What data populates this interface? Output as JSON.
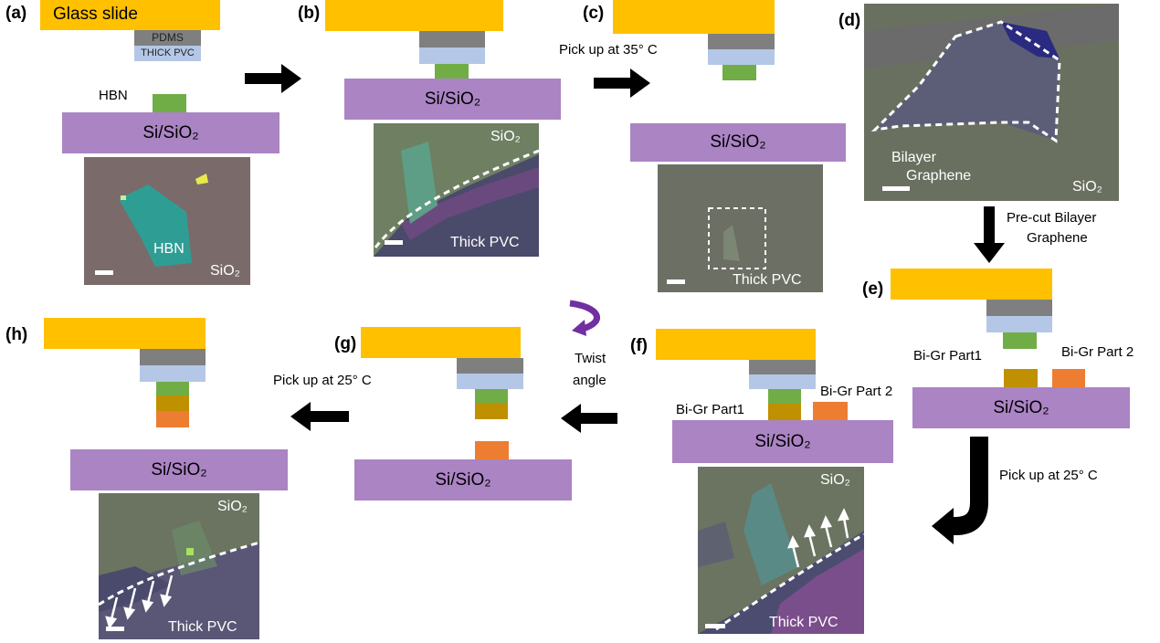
{
  "panels": {
    "a": {
      "label": "(a)",
      "glass": "Glass slide",
      "pdms": "PDMS",
      "pvc": "THICK PVC",
      "hbn_tag": "HBN",
      "substrate": "Si/SiO₂",
      "photo_label_flake": "HBN",
      "photo_label_sio2": "SiO₂"
    },
    "b": {
      "label": "(b)",
      "substrate": "Si/SiO₂",
      "photo_label_sio2": "SiO₂",
      "photo_label_pvc": "Thick PVC"
    },
    "c": {
      "label": "(c)",
      "caption": "Pick up at 35° C",
      "substrate": "Si/SiO₂",
      "photo_label_pvc": "Thick PVC"
    },
    "d": {
      "label": "(d)",
      "photo_label_bilayer": "Bilayer",
      "photo_label_graphene": "Graphene",
      "photo_label_sio2": "SiO₂",
      "caption_line1": "Pre-cut Bilayer",
      "caption_line2": "Graphene"
    },
    "e": {
      "label": "(e)",
      "part1": "Bi-Gr Part1",
      "part2": "Bi-Gr Part 2",
      "substrate": "Si/SiO₂",
      "caption": "Pick up at 25° C"
    },
    "f": {
      "label": "(f)",
      "part1": "Bi-Gr Part1",
      "part2": "Bi-Gr Part 2",
      "substrate": "Si/SiO₂",
      "photo_label_sio2": "SiO₂",
      "photo_label_pvc": "Thick PVC"
    },
    "g": {
      "label": "(g)",
      "substrate": "Si/SiO₂",
      "twist_line1": "Twist",
      "twist_line2": "angle"
    },
    "h": {
      "label": "(h)",
      "caption": "Pick up at 25° C",
      "substrate": "Si/SiO₂",
      "photo_label_sio2": "SiO₂",
      "photo_label_pvc": "Thick PVC"
    }
  },
  "colors": {
    "glass": "#ffc000",
    "pdms": "#7f7f7f",
    "pvc": "#b4c7e7",
    "hbn": "#70ad47",
    "bigr_part1": "#bf9000",
    "bigr_part2": "#ed7d31",
    "substrate": "#ab84c4",
    "twist_arrow": "#7030a0"
  },
  "icons": [
    "right-arrow-icon",
    "down-arrow-icon",
    "left-arrow-icon",
    "curved-down-left-arrow-icon",
    "rotate-arrow-icon",
    "scale-bar-icon"
  ]
}
